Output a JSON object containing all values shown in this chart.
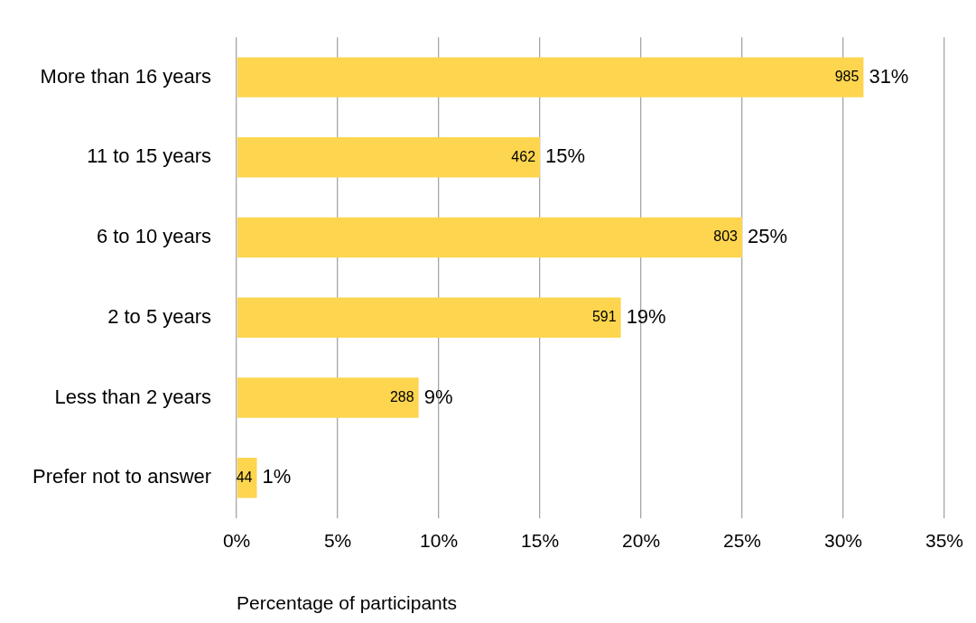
{
  "chart_data": {
    "type": "bar",
    "orientation": "horizontal",
    "xlabel": "Percentage of participants",
    "categories": [
      "More than 16 years",
      "11 to 15 years",
      "6 to 10 years",
      "2 to 5 years",
      "Less than 2 years",
      "Prefer not to answer"
    ],
    "values": [
      31,
      15,
      25,
      19,
      9,
      1
    ],
    "color": "#fdd54f",
    "value_labels": [
      "31%",
      "15%",
      "25%",
      "19%",
      "9%",
      "1%"
    ],
    "annotations": [
      {
        "text": "985",
        "x": 31,
        "y": "More than 16 years"
      },
      {
        "text": "462",
        "x": 15,
        "y": "11 to 15 years"
      },
      {
        "text": "803",
        "x": 25,
        "y": "6 to 10 years"
      },
      {
        "text": "591",
        "x": 19,
        "y": "2 to 5 years"
      },
      {
        "text": "288",
        "x": 9,
        "y": "Less than 2 years"
      },
      {
        "text": "44",
        "x": 1,
        "y": "Prefer not to answer"
      }
    ],
    "xlim": [
      0,
      35
    ],
    "xticks": [
      {
        "value": 0,
        "label": "0%"
      },
      {
        "value": 5,
        "label": "5%"
      },
      {
        "value": 10,
        "label": "10%"
      },
      {
        "value": 15,
        "label": "15%"
      },
      {
        "value": 20,
        "label": "20%"
      },
      {
        "value": 25,
        "label": "25%"
      },
      {
        "value": 30,
        "label": "30%"
      },
      {
        "value": 35,
        "label": "35%"
      }
    ],
    "grid": "x",
    "legend": false
  }
}
